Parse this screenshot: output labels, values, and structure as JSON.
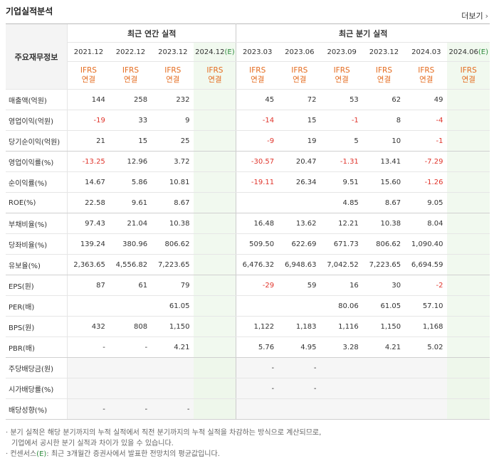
{
  "section_title": "기업실적분석",
  "more_label": "더보기",
  "more_icon": "chevron-right-icon",
  "corner_label": "주요재무정보",
  "groups": {
    "annual": "최근 연간 실적",
    "quarter": "최근 분기 실적"
  },
  "annual_periods": [
    "2021.12",
    "2022.12",
    "2023.12",
    "2024.12"
  ],
  "quarter_periods": [
    "2023.03",
    "2023.06",
    "2023.09",
    "2023.12",
    "2024.03",
    "2024.06"
  ],
  "estimate_marker": "(E)",
  "basis_top": "IFRS",
  "basis_bottom": "연결",
  "rows": [
    {
      "label": "매출액(억원)",
      "annual": [
        "144",
        "258",
        "232",
        ""
      ],
      "quarter": [
        "45",
        "72",
        "53",
        "62",
        "49",
        ""
      ]
    },
    {
      "label": "영업이익(억원)",
      "annual": [
        "-19",
        "33",
        "9",
        ""
      ],
      "quarter": [
        "-14",
        "15",
        "-1",
        "8",
        "-4",
        ""
      ]
    },
    {
      "label": "당기순이익(억원)",
      "annual": [
        "21",
        "15",
        "25",
        ""
      ],
      "quarter": [
        "-9",
        "19",
        "5",
        "10",
        "-1",
        ""
      ]
    },
    {
      "label": "영업이익률(%)",
      "annual": [
        "-13.25",
        "12.96",
        "3.72",
        ""
      ],
      "quarter": [
        "-30.57",
        "20.47",
        "-1.31",
        "13.41",
        "-7.29",
        ""
      ]
    },
    {
      "label": "순이익률(%)",
      "annual": [
        "14.67",
        "5.86",
        "10.81",
        ""
      ],
      "quarter": [
        "-19.11",
        "26.34",
        "9.51",
        "15.60",
        "-1.26",
        ""
      ]
    },
    {
      "label": "ROE(%)",
      "annual": [
        "22.58",
        "9.61",
        "8.67",
        ""
      ],
      "quarter": [
        "",
        "",
        "4.85",
        "8.67",
        "9.05",
        ""
      ]
    },
    {
      "label": "부채비율(%)",
      "annual": [
        "97.43",
        "21.04",
        "10.38",
        ""
      ],
      "quarter": [
        "16.48",
        "13.62",
        "12.21",
        "10.38",
        "8.04",
        ""
      ]
    },
    {
      "label": "당좌비율(%)",
      "annual": [
        "139.24",
        "380.96",
        "806.62",
        ""
      ],
      "quarter": [
        "509.50",
        "622.69",
        "671.73",
        "806.62",
        "1,090.40",
        ""
      ]
    },
    {
      "label": "유보율(%)",
      "annual": [
        "2,363.65",
        "4,556.82",
        "7,223.65",
        ""
      ],
      "quarter": [
        "6,476.32",
        "6,948.63",
        "7,042.52",
        "7,223.65",
        "6,694.59",
        ""
      ]
    },
    {
      "label": "EPS(원)",
      "annual": [
        "87",
        "61",
        "79",
        ""
      ],
      "quarter": [
        "-29",
        "59",
        "16",
        "30",
        "-2",
        ""
      ]
    },
    {
      "label": "PER(배)",
      "annual": [
        "",
        "",
        "61.05",
        ""
      ],
      "quarter": [
        "",
        "",
        "80.06",
        "61.05",
        "57.10",
        ""
      ]
    },
    {
      "label": "BPS(원)",
      "annual": [
        "432",
        "808",
        "1,150",
        ""
      ],
      "quarter": [
        "1,122",
        "1,183",
        "1,116",
        "1,150",
        "1,168",
        ""
      ]
    },
    {
      "label": "PBR(배)",
      "annual": [
        "-",
        "-",
        "4.21",
        ""
      ],
      "quarter": [
        "5.76",
        "4.95",
        "3.28",
        "4.21",
        "5.02",
        ""
      ]
    },
    {
      "label": "주당배당금(원)",
      "annual": [
        "",
        "",
        "",
        ""
      ],
      "quarter": [
        "-",
        "-",
        "",
        "",
        "",
        ""
      ]
    },
    {
      "label": "시가배당률(%)",
      "annual": [
        "",
        "",
        "",
        ""
      ],
      "quarter": [
        "-",
        "-",
        "",
        "",
        "",
        ""
      ]
    },
    {
      "label": "배당성향(%)",
      "annual": [
        "-",
        "-",
        "-",
        ""
      ],
      "quarter": [
        "",
        "",
        "",
        "",
        "",
        ""
      ]
    }
  ],
  "notes": {
    "line1": "분기 실적은 해당 분기까지의 누적 실적에서 직전 분기까지의 누적 실적을 차감하는 방식으로 계산되므로,",
    "line2": "기업에서 공시한 분기 실적과 차이가 있을 수 있습니다.",
    "line3_prefix": "컨센서스",
    "line3_marker": "(E)",
    "line3_suffix": ": 최근 3개월간 증권사에서 발표한 전망치의 평균값입니다."
  },
  "colors": {
    "negative": "#e0342b",
    "ifrs": "#e46b1e",
    "estimate_bg": "#f1f9ef",
    "estimate_marker": "#2e8b3d"
  }
}
